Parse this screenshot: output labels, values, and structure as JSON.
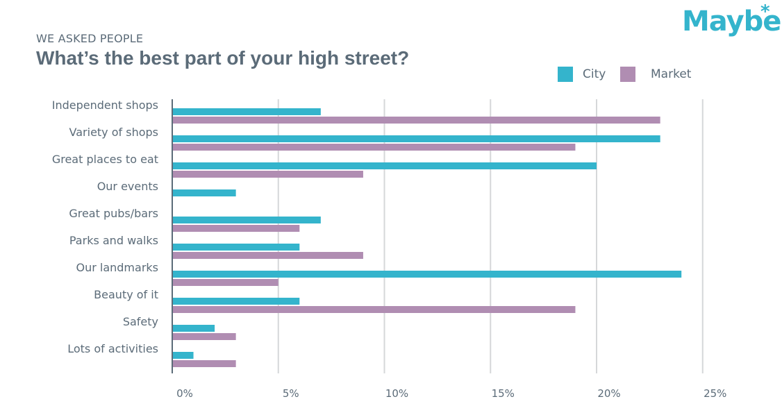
{
  "header": {
    "kicker": "WE ASKED PEOPLE",
    "title": "What’s the best part of your high street?",
    "logo": "Maybe",
    "logo_mark": "*"
  },
  "chart_data": {
    "type": "bar",
    "orientation": "horizontal",
    "title": "What’s the best part of your high street?",
    "subtitle": "WE ASKED PEOPLE",
    "xlabel": "",
    "ylabel": "",
    "xlim": [
      0,
      25
    ],
    "x_ticks": [
      "0%",
      "5%",
      "10%",
      "15%",
      "20%",
      "25%"
    ],
    "grid": "vertical",
    "legend_position": "top-right",
    "categories": [
      "Independent shops",
      "Variety of shops",
      "Great places to eat",
      "Our events",
      "Great pubs/bars",
      "Parks and walks",
      "Our landmarks",
      "Beauty of it",
      "Safety",
      "Lots of activities"
    ],
    "series": [
      {
        "name": "City",
        "color": "#34b4cc",
        "values": [
          7,
          23,
          20,
          3,
          7,
          6,
          24,
          6,
          2,
          1
        ]
      },
      {
        "name": "Market",
        "color": "#b08db2",
        "values": [
          23,
          19,
          9,
          null,
          6,
          9,
          5,
          19,
          3,
          3
        ]
      }
    ]
  },
  "colors": {
    "text": "#5b6b78",
    "grid": "#d5d7d9",
    "axis": "#5b6b78",
    "brand": "#34b4cc"
  }
}
